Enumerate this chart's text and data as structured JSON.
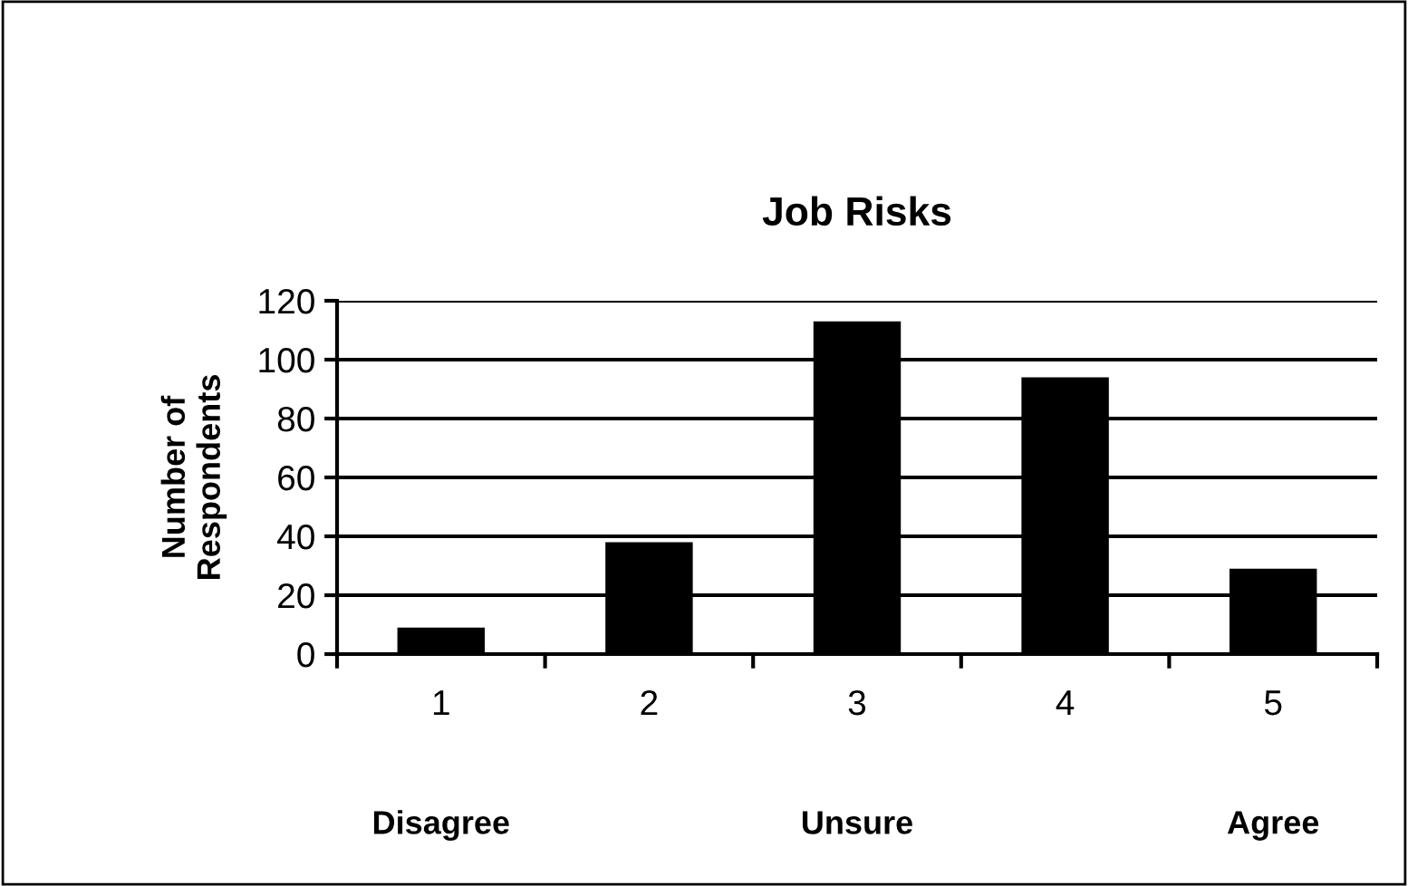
{
  "chart_data": {
    "type": "bar",
    "title": "Job Risks",
    "ylabel": "Number of\nRespondents",
    "categories": [
      "1",
      "2",
      "3",
      "4",
      "5"
    ],
    "values": [
      9,
      38,
      113,
      94,
      29
    ],
    "color": "#000000",
    "ylim": [
      0,
      120
    ],
    "yticks": [
      0,
      20,
      40,
      60,
      80,
      100,
      120
    ],
    "grid": "y",
    "annotations": [
      "Disagree",
      "Unsure",
      "Agree"
    ]
  }
}
